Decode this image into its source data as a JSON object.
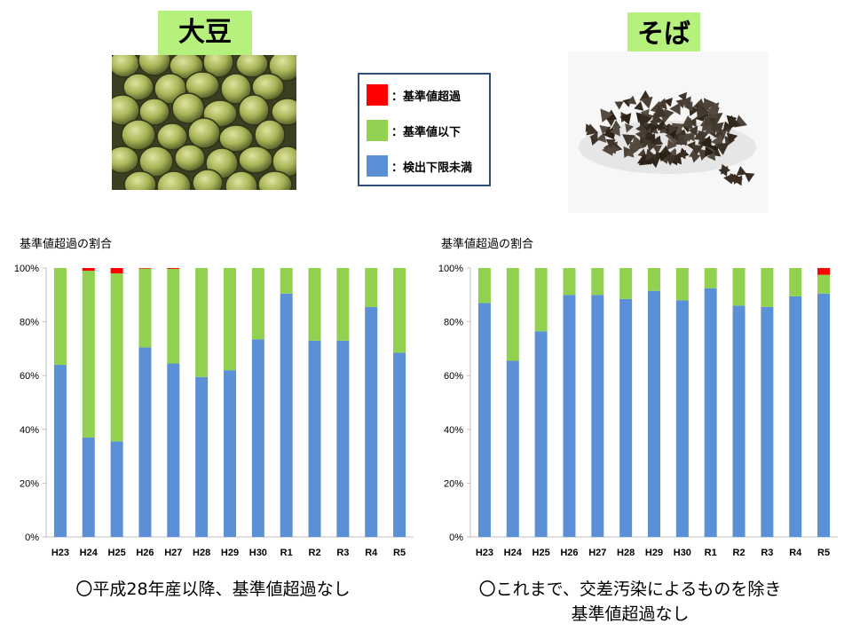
{
  "soy": {
    "title": "大豆"
  },
  "buckwheat": {
    "title": "そば"
  },
  "legend": [
    {
      "label": "：基準値超過",
      "color": "#ff0000"
    },
    {
      "label": "：基準値以下",
      "color": "#92d050"
    },
    {
      "label": "：検出下限未満",
      "color": "#5b8fd6"
    }
  ],
  "notes": {
    "left": "〇平成28年産以降、基準値超過なし",
    "right_line1": "〇これまで、交差汚染によるものを除き",
    "right_line2": "基準値超過なし"
  },
  "chart_data": [
    {
      "type": "bar",
      "stacked": true,
      "title": "基準値超過の割合",
      "categories": [
        "H23",
        "H24",
        "H25",
        "H26",
        "H27",
        "H28",
        "H29",
        "H30",
        "R1",
        "R2",
        "R3",
        "R4",
        "R5"
      ],
      "y_ticks": [
        "0%",
        "20%",
        "40%",
        "60%",
        "80%",
        "100%"
      ],
      "ylim": [
        0,
        100
      ],
      "series": [
        {
          "name": "：検出下限未満",
          "color": "#5b8fd6",
          "values": [
            64,
            37,
            35.5,
            70.5,
            64.5,
            59.5,
            62,
            73.5,
            90.5,
            73,
            73,
            85.5,
            68.5
          ]
        },
        {
          "name": "：基準値以下",
          "color": "#92d050",
          "values": [
            36,
            62,
            62.5,
            29.3,
            35.2,
            40.5,
            38,
            26.5,
            9.5,
            27,
            27,
            14.5,
            31.5
          ]
        },
        {
          "name": "：基準値超過",
          "color": "#ff0000",
          "values": [
            0,
            1,
            2,
            0.2,
            0.3,
            0,
            0,
            0,
            0,
            0,
            0,
            0,
            0
          ]
        }
      ]
    },
    {
      "type": "bar",
      "stacked": true,
      "title": "基準値超過の割合",
      "categories": [
        "H23",
        "H24",
        "H25",
        "H26",
        "H27",
        "H28",
        "H29",
        "H30",
        "R1",
        "R2",
        "R3",
        "R4",
        "R5"
      ],
      "y_ticks": [
        "0%",
        "20%",
        "40%",
        "60%",
        "80%",
        "100%"
      ],
      "ylim": [
        0,
        100
      ],
      "series": [
        {
          "name": "：検出下限未満",
          "color": "#5b8fd6",
          "values": [
            87,
            65.5,
            76.5,
            90,
            90,
            88.5,
            91.5,
            88,
            92.5,
            86,
            85.5,
            89.5,
            90.5
          ]
        },
        {
          "name": "：基準値以下",
          "color": "#92d050",
          "values": [
            13,
            34.5,
            23.5,
            10,
            10,
            11.5,
            8.5,
            12,
            7.5,
            14,
            14.5,
            10.5,
            7
          ]
        },
        {
          "name": "：基準値超過",
          "color": "#ff0000",
          "values": [
            0,
            0,
            0,
            0,
            0,
            0,
            0,
            0,
            0,
            0,
            0,
            0,
            2.5
          ]
        }
      ]
    }
  ]
}
